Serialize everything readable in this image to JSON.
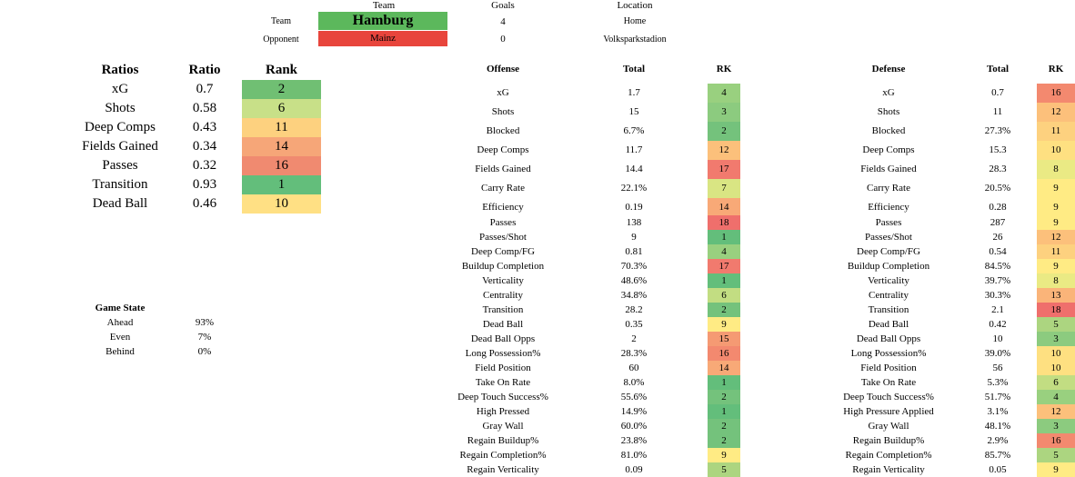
{
  "header": {
    "team_col_label": "Team",
    "goals_col_label": "Goals",
    "location_col_label": "Location",
    "team_row_label": "Team",
    "opponent_row_label": "Opponent",
    "team_name": "Hamburg",
    "opponent_name": "Mainz",
    "team_goals": "4",
    "opponent_goals": "0",
    "home_away": "Home",
    "stadium": "Volksparkstadion",
    "team_color": "#5cb85c",
    "opponent_color": "#e8453c"
  },
  "ratios": {
    "col_metric": "Ratios",
    "col_ratio": "Ratio",
    "col_rank": "Rank",
    "rows": [
      {
        "label": "xG",
        "ratio": "0.7",
        "rank": "2",
        "color": "#70bf73"
      },
      {
        "label": "Shots",
        "ratio": "0.58",
        "rank": "6",
        "color": "#c8e088"
      },
      {
        "label": "Deep Comps",
        "ratio": "0.43",
        "rank": "11",
        "color": "#fdd17f"
      },
      {
        "label": "Fields Gained",
        "ratio": "0.34",
        "rank": "14",
        "color": "#f6a678"
      },
      {
        "label": "Passes",
        "ratio": "0.32",
        "rank": "16",
        "color": "#f08a70"
      },
      {
        "label": "Transition",
        "ratio": "0.93",
        "rank": "1",
        "color": "#63be7b"
      },
      {
        "label": "Dead Ball",
        "ratio": "0.46",
        "rank": "10",
        "color": "#ffe084"
      }
    ]
  },
  "game_state": {
    "title": "Game State",
    "rows": [
      {
        "label": "Ahead",
        "value": "93%"
      },
      {
        "label": "Even",
        "value": "7%"
      },
      {
        "label": "Behind",
        "value": "0%"
      }
    ]
  },
  "offense": {
    "col_metric": "Offense",
    "col_total": "Total",
    "col_rank": "RK",
    "rows": [
      {
        "label": "xG",
        "total": "1.7",
        "rank": "4",
        "color": "#99d07f"
      },
      {
        "label": "Shots",
        "total": "15",
        "rank": "3",
        "color": "#8ccb7f"
      },
      {
        "label": "Blocked",
        "total": "6.7%",
        "rank": "2",
        "color": "#74c27c"
      },
      {
        "label": "Deep Comps",
        "total": "11.7",
        "rank": "12",
        "color": "#fcc07b"
      },
      {
        "label": "Fields Gained",
        "total": "14.4",
        "rank": "17",
        "color": "#f17a6e"
      },
      {
        "label": "Carry Rate",
        "total": "22.1%",
        "rank": "7",
        "color": "#d9e583"
      },
      {
        "label": "Efficiency",
        "total": "0.19",
        "rank": "14",
        "color": "#f8a977"
      },
      {
        "label": "Passes",
        "total": "138",
        "rank": "18",
        "color": "#ef6f6c"
      },
      {
        "label": "Passes/Shot",
        "total": "9",
        "rank": "1",
        "color": "#63be7b"
      },
      {
        "label": "Deep Comp/FG",
        "total": "0.81",
        "rank": "4",
        "color": "#99d07f"
      },
      {
        "label": "Buildup Completion",
        "total": "70.3%",
        "rank": "17",
        "color": "#f17a6e"
      },
      {
        "label": "Verticality",
        "total": "48.6%",
        "rank": "1",
        "color": "#63be7b"
      },
      {
        "label": "Centrality",
        "total": "34.8%",
        "rank": "6",
        "color": "#c2dd82"
      },
      {
        "label": "Transition",
        "total": "28.2",
        "rank": "2",
        "color": "#74c27c"
      },
      {
        "label": "Dead Ball",
        "total": "0.35",
        "rank": "9",
        "color": "#ffeb84"
      },
      {
        "label": "Dead Ball Opps",
        "total": "2",
        "rank": "15",
        "color": "#f59a73"
      },
      {
        "label": "Long Possession%",
        "total": "28.3%",
        "rank": "16",
        "color": "#f3896f"
      },
      {
        "label": "Field Position",
        "total": "60",
        "rank": "14",
        "color": "#f8a977"
      },
      {
        "label": "Take On Rate",
        "total": "8.0%",
        "rank": "1",
        "color": "#63be7b"
      },
      {
        "label": "Deep Touch Success%",
        "total": "55.6%",
        "rank": "2",
        "color": "#74c27c"
      },
      {
        "label": "High Pressed",
        "total": "14.9%",
        "rank": "1",
        "color": "#63be7b"
      },
      {
        "label": "Gray Wall",
        "total": "60.0%",
        "rank": "2",
        "color": "#74c27c"
      },
      {
        "label": "Regain Buildup%",
        "total": "23.8%",
        "rank": "2",
        "color": "#74c27c"
      },
      {
        "label": "Regain Completion%",
        "total": "81.0%",
        "rank": "9",
        "color": "#ffeb84"
      },
      {
        "label": "Regain Verticality",
        "total": "0.09",
        "rank": "5",
        "color": "#acd580"
      }
    ]
  },
  "defense": {
    "col_metric": "Defense",
    "col_total": "Total",
    "col_rank": "RK",
    "rows": [
      {
        "label": "xG",
        "total": "0.7",
        "rank": "16",
        "color": "#f3896f"
      },
      {
        "label": "Shots",
        "total": "11",
        "rank": "12",
        "color": "#fcc07b"
      },
      {
        "label": "Blocked",
        "total": "27.3%",
        "rank": "11",
        "color": "#fdd17f"
      },
      {
        "label": "Deep Comps",
        "total": "15.3",
        "rank": "10",
        "color": "#fee081"
      },
      {
        "label": "Fields Gained",
        "total": "28.3",
        "rank": "8",
        "color": "#eaea84"
      },
      {
        "label": "Carry Rate",
        "total": "20.5%",
        "rank": "9",
        "color": "#ffeb84"
      },
      {
        "label": "Efficiency",
        "total": "0.28",
        "rank": "9",
        "color": "#ffeb84"
      },
      {
        "label": "Passes",
        "total": "287",
        "rank": "9",
        "color": "#ffeb84"
      },
      {
        "label": "Passes/Shot",
        "total": "26",
        "rank": "12",
        "color": "#fcc07b"
      },
      {
        "label": "Deep Comp/FG",
        "total": "0.54",
        "rank": "11",
        "color": "#fdd17f"
      },
      {
        "label": "Buildup Completion",
        "total": "84.5%",
        "rank": "9",
        "color": "#ffeb84"
      },
      {
        "label": "Verticality",
        "total": "39.7%",
        "rank": "8",
        "color": "#eaea84"
      },
      {
        "label": "Centrality",
        "total": "30.3%",
        "rank": "13",
        "color": "#fab479"
      },
      {
        "label": "Transition",
        "total": "2.1",
        "rank": "18",
        "color": "#ef6f6c"
      },
      {
        "label": "Dead Ball",
        "total": "0.42",
        "rank": "5",
        "color": "#acd580"
      },
      {
        "label": "Dead Ball Opps",
        "total": "10",
        "rank": "3",
        "color": "#8ccb7f"
      },
      {
        "label": "Long Possession%",
        "total": "39.0%",
        "rank": "10",
        "color": "#fee081"
      },
      {
        "label": "Field Position",
        "total": "56",
        "rank": "10",
        "color": "#fee081"
      },
      {
        "label": "Take On Rate",
        "total": "5.3%",
        "rank": "6",
        "color": "#c2dd82"
      },
      {
        "label": "Deep Touch Success%",
        "total": "51.7%",
        "rank": "4",
        "color": "#99d07f"
      },
      {
        "label": "High Pressure Applied",
        "total": "3.1%",
        "rank": "12",
        "color": "#fcc07b"
      },
      {
        "label": "Gray Wall",
        "total": "48.1%",
        "rank": "3",
        "color": "#8ccb7f"
      },
      {
        "label": "Regain Buildup%",
        "total": "2.9%",
        "rank": "16",
        "color": "#f3896f"
      },
      {
        "label": "Regain Completion%",
        "total": "85.7%",
        "rank": "5",
        "color": "#acd580"
      },
      {
        "label": "Regain Verticality",
        "total": "0.05",
        "rank": "9",
        "color": "#ffeb84"
      }
    ]
  }
}
